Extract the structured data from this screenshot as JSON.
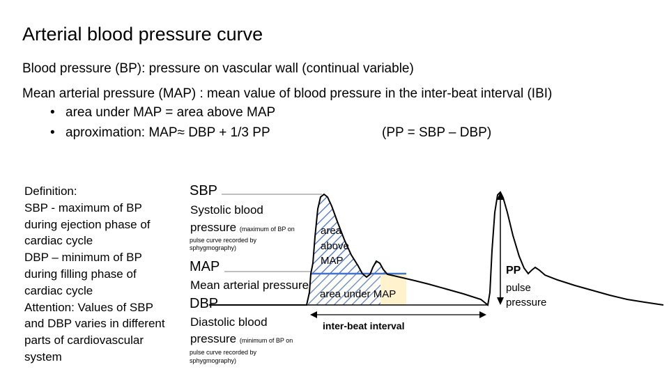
{
  "title": "Arterial blood pressure curve",
  "lines": {
    "bp_def": "Blood pressure (BP):  pressure on vascular wall (continual variable)",
    "map_def": "Mean arterial pressure (MAP) : mean value of blood pressure in the inter-beat interval (IBI)",
    "bullet_dot": "•",
    "bullet1": "area under MAP = area above MAP",
    "bullet2": "aproximation: MAP≈ DBP + 1/3 PP",
    "pp_formula": "(PP = SBP – DBP)"
  },
  "definition": {
    "heading": "Definition:",
    "l1": "SBP  - maximum of BP",
    "l2": "during ejection phase of",
    "l3": "cardiac cycle",
    "l4": "DBP – minimum of BP",
    "l5": "during filling phase of",
    "l6": "cardiac cycle",
    "l7": "Attention: Values of SBP",
    "l8": "and DBP varies in different",
    "l9": "parts of cardiovascular",
    "l10": "system"
  },
  "labels": {
    "sbp": "SBP",
    "sbp_name1": "Systolic blood",
    "sbp_name2": "pressure",
    "sbp_note1": "(maximum of BP on",
    "sbp_note2": "pulse curve recorded by",
    "sbp_note3": "sphygmography)",
    "map": "MAP",
    "map_name": "Mean arterial pressure",
    "dbp": "DBP",
    "dbp_name1": "Diastolic blood",
    "dbp_name2": "pressure",
    "dbp_note1": "(minimum of BP on",
    "dbp_note2": "pulse curve recorded by",
    "dbp_note3": "sphygmography)",
    "area_above1": "area",
    "area_above2": "above",
    "area_above3": "MAP",
    "area_under": "area under MAP",
    "ibi": "inter-beat interval",
    "pp": "PP",
    "pp_name1": "pulse",
    "pp_name2": "pressure"
  },
  "colors": {
    "hatch": "#4472c4",
    "area_under_fill": "#fff2cc",
    "map_line": "#4472c4",
    "curve": "#000000"
  }
}
